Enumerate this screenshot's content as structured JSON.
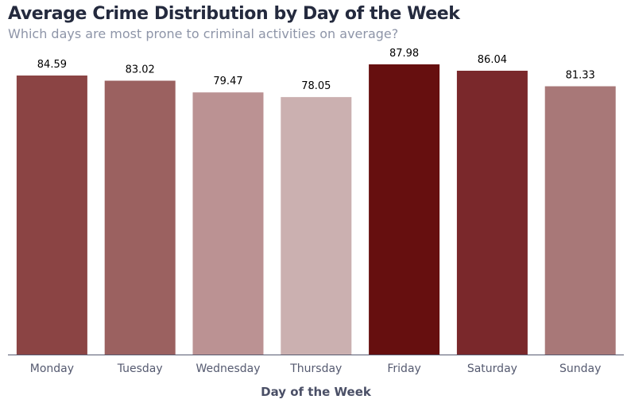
{
  "title": "Average Crime Distribution by Day of the Week",
  "subtitle": "Which days are most prone to criminal activities on average?",
  "chart_data": {
    "type": "bar",
    "title": "Average Crime Distribution by Day of the Week",
    "subtitle": "Which days are most prone to criminal activities on average?",
    "xlabel": "Day of the Week",
    "ylabel": "",
    "categories": [
      "Monday",
      "Tuesday",
      "Wednesday",
      "Thursday",
      "Friday",
      "Saturday",
      "Sunday"
    ],
    "values": [
      84.59,
      83.02,
      79.47,
      78.05,
      87.98,
      86.04,
      81.33
    ],
    "value_labels": [
      "84.59",
      "83.02",
      "79.47",
      "78.05",
      "87.98",
      "86.04",
      "81.33"
    ],
    "ylim": [
      0,
      92.4
    ],
    "grid": false,
    "colors": [
      "#8b4444",
      "#9b6160",
      "#bb9293",
      "#cbb0b0",
      "#660f0f",
      "#7a282b",
      "#a87878"
    ]
  }
}
